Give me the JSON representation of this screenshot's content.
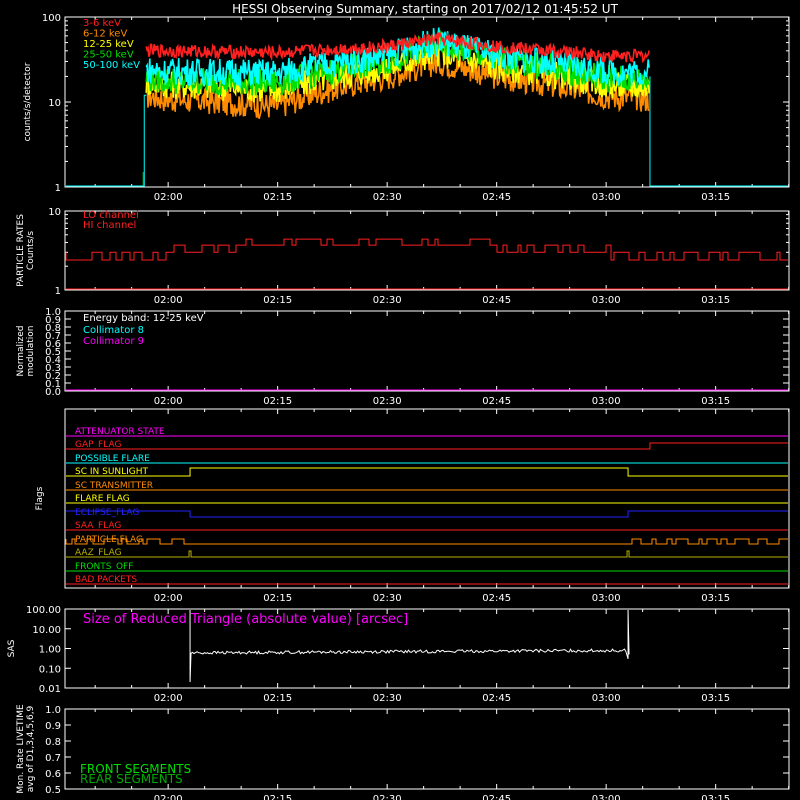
{
  "title": "HESSI Observing Summary, starting on 2017/02/12 01:45:52 UT",
  "time_ticks": [
    "02:00",
    "02:15",
    "02:30",
    "02:45",
    "03:00",
    "03:15"
  ],
  "colors": {
    "red": "#ff2020",
    "orange": "#ff8c00",
    "yellow": "#ffff00",
    "green": "#00dd00",
    "cyan": "#00ffff",
    "magenta": "#ff00ff",
    "blue": "#2222ff",
    "white": "#ffffff",
    "olive": "#b7b000",
    "frame": "#ffffff"
  },
  "chart_data": [
    {
      "type": "line",
      "panel": "count-rates",
      "ylabel": "counts/s/detector",
      "y_scale": "log",
      "ylim": [
        1,
        100
      ],
      "y_tick_labels": [
        "1",
        "10",
        "100"
      ],
      "legend_placement": "top-left",
      "series": [
        {
          "name": "3-6 keV",
          "color": "#ff2020"
        },
        {
          "name": "6-12 keV",
          "color": "#ff8c00"
        },
        {
          "name": "12-25 keV",
          "color": "#ffff00"
        },
        {
          "name": "25-50 keV",
          "color": "#00dd00"
        },
        {
          "name": "50-100 keV",
          "color": "#00ffff"
        }
      ],
      "x": [
        "01:57",
        "02:00",
        "02:15",
        "02:30",
        "02:37",
        "02:45",
        "03:00",
        "03:06"
      ],
      "band_values": {
        "3-6 keV": [
          40,
          40,
          38,
          45,
          55,
          45,
          35,
          35
        ],
        "6-12 keV": [
          12,
          11,
          9,
          20,
          30,
          20,
          12,
          11
        ],
        "12-25 keV": [
          17,
          16,
          14,
          25,
          38,
          26,
          16,
          15
        ],
        "25-50 keV": [
          19,
          18,
          17,
          30,
          48,
          32,
          19,
          18
        ],
        "50-100 keV": [
          24,
          23,
          22,
          35,
          52,
          35,
          23,
          22
        ]
      }
    },
    {
      "type": "line",
      "panel": "particle-rates",
      "ylabel_lines": [
        "PARTICLE RATES",
        "Counts/s"
      ],
      "y_scale": "log",
      "ylim": [
        1,
        10
      ],
      "y_tick_labels": [
        "1",
        "10"
      ],
      "series": [
        {
          "name": "LO channel",
          "color": "#ff2020"
        },
        {
          "name": "HI channel",
          "color": "#ff2020"
        }
      ]
    },
    {
      "type": "line",
      "panel": "modulation",
      "ylabel_lines": [
        "Normalized",
        "modulation"
      ],
      "ylim": [
        0,
        1
      ],
      "y_tick_labels": [
        "0.0",
        "0.1",
        "0.2",
        "0.3",
        "0.4",
        "0.5",
        "0.6",
        "0.7",
        "0.8",
        "0.9",
        "1.0"
      ],
      "annotation": "Energy band: 12-25 keV",
      "series": [
        {
          "name": "Collimator 8",
          "color": "#00ffff"
        },
        {
          "name": "Collimator 9",
          "color": "#ff00ff"
        }
      ]
    },
    {
      "type": "line",
      "panel": "flags",
      "ylabel": "Flags",
      "series": [
        {
          "name": "ATTENUATOR STATE",
          "color": "#ff00ff"
        },
        {
          "name": "GAP_FLAG",
          "color": "#ff2020"
        },
        {
          "name": "POSSIBLE FLARE",
          "color": "#00ffff"
        },
        {
          "name": "SC IN SUNLIGHT",
          "color": "#ffff00"
        },
        {
          "name": "SC TRANSMITTER",
          "color": "#ff8c00"
        },
        {
          "name": "FLARE FLAG",
          "color": "#ffff00"
        },
        {
          "name": "ECLIPSE_FLAG",
          "color": "#2222ff"
        },
        {
          "name": "SAA_FLAG",
          "color": "#ff2020"
        },
        {
          "name": "PARTICLE FLAG",
          "color": "#ff8c00"
        },
        {
          "name": "AAZ_FLAG",
          "color": "#b7b000"
        },
        {
          "name": "FRONTS_OFF",
          "color": "#00dd00"
        },
        {
          "name": "BAD PACKETS",
          "color": "#ff2020"
        }
      ]
    },
    {
      "type": "line",
      "panel": "sas",
      "ylabel": "SAS",
      "y_scale": "log",
      "ylim": [
        0.01,
        100
      ],
      "y_tick_labels": [
        "100.00",
        "10.00",
        "1.00",
        "0.10",
        "0.01"
      ],
      "annotation": "Size of Reduced Triangle (absolute value) [arcsec]",
      "x": [
        "02:03",
        "03:03"
      ],
      "values": [
        0.6,
        0.8
      ]
    },
    {
      "type": "line",
      "panel": "livetime",
      "ylabel_lines": [
        "Mon. Rate LIVETIME",
        "avg of D1,3,4,5,6,9"
      ],
      "ylim": [
        0.5,
        1.0
      ],
      "y_tick_labels": [
        "0.5",
        "0.6",
        "0.7",
        "0.8",
        "0.9",
        "1.0"
      ],
      "series": [
        {
          "name": "FRONT SEGMENTS",
          "color": "#00dd00"
        },
        {
          "name": "REAR SEGMENTS",
          "color": "#00aa00"
        }
      ]
    }
  ]
}
